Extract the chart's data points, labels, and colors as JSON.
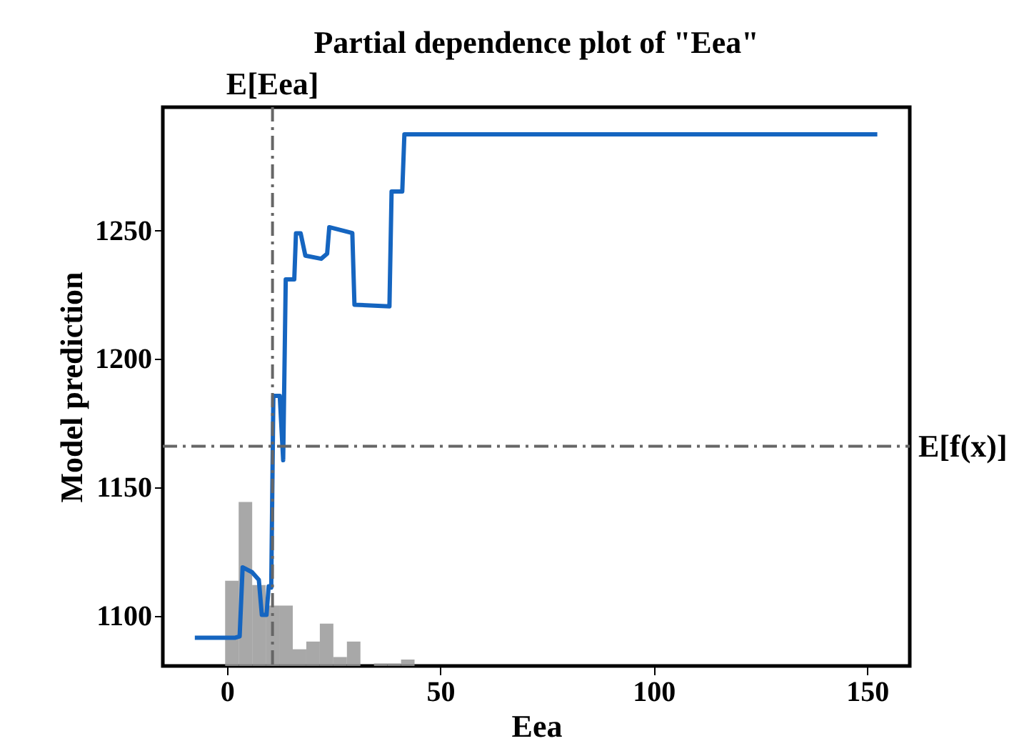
{
  "chart_data": {
    "type": "line",
    "title": "Partial dependence plot of \"Eea\"",
    "xlabel": "Eea",
    "ylabel": "Model prediction",
    "xlim": [
      -15,
      160
    ],
    "xticks": [
      0,
      50,
      100,
      150
    ],
    "ylim": [
      1080.5,
      1298
    ],
    "yticks": [
      1100,
      1150,
      1200,
      1250
    ],
    "grid": false,
    "series": [
      {
        "type": "histogram",
        "color": "#999999",
        "bins": [
          -0.4,
          2.77,
          5.94,
          9.11,
          12.28,
          15.45,
          18.62,
          21.79,
          24.96,
          28.13,
          31.3,
          34.47,
          37.64,
          40.81,
          43.98
        ],
        "values": [
          1113.7,
          1144.3,
          1112,
          1104,
          1104,
          1087,
          1090,
          1097,
          1084,
          1090,
          null,
          1081.5,
          1081.5,
          1083
        ]
      },
      {
        "color": "#1565c0",
        "x": [
          -7.5,
          2.0,
          3.0,
          3.7,
          5.9,
          7.5,
          8.2,
          9.3,
          9.8,
          10.4,
          10.9,
          12.4,
          13.2,
          13.8,
          15.8,
          16.2,
          17.3,
          18.4,
          22.1,
          23.5,
          24.0,
          29.4,
          29.9,
          38.1,
          38.6,
          41.1,
          41.6,
          152.4
        ],
        "values": [
          1091.5,
          1091.5,
          1092,
          1118.9,
          1117,
          1114,
          1100.4,
          1100.4,
          1111.5,
          1111,
          1185.6,
          1185.6,
          1160.6,
          1231,
          1231,
          1248.9,
          1248.9,
          1240.2,
          1239,
          1241,
          1251.3,
          1249,
          1221.1,
          1220.5,
          1265.2,
          1265.2,
          1287.4,
          1287.4
        ]
      }
    ],
    "ref_lines": [
      {
        "axis": "x",
        "value": 10.7,
        "label": "E[Eea]",
        "color": "#666666",
        "line_style": "dashed"
      },
      {
        "axis": "y",
        "value": 1166,
        "label": "E[f(x)]",
        "color": "#666666",
        "line_style": "dashed"
      }
    ]
  }
}
